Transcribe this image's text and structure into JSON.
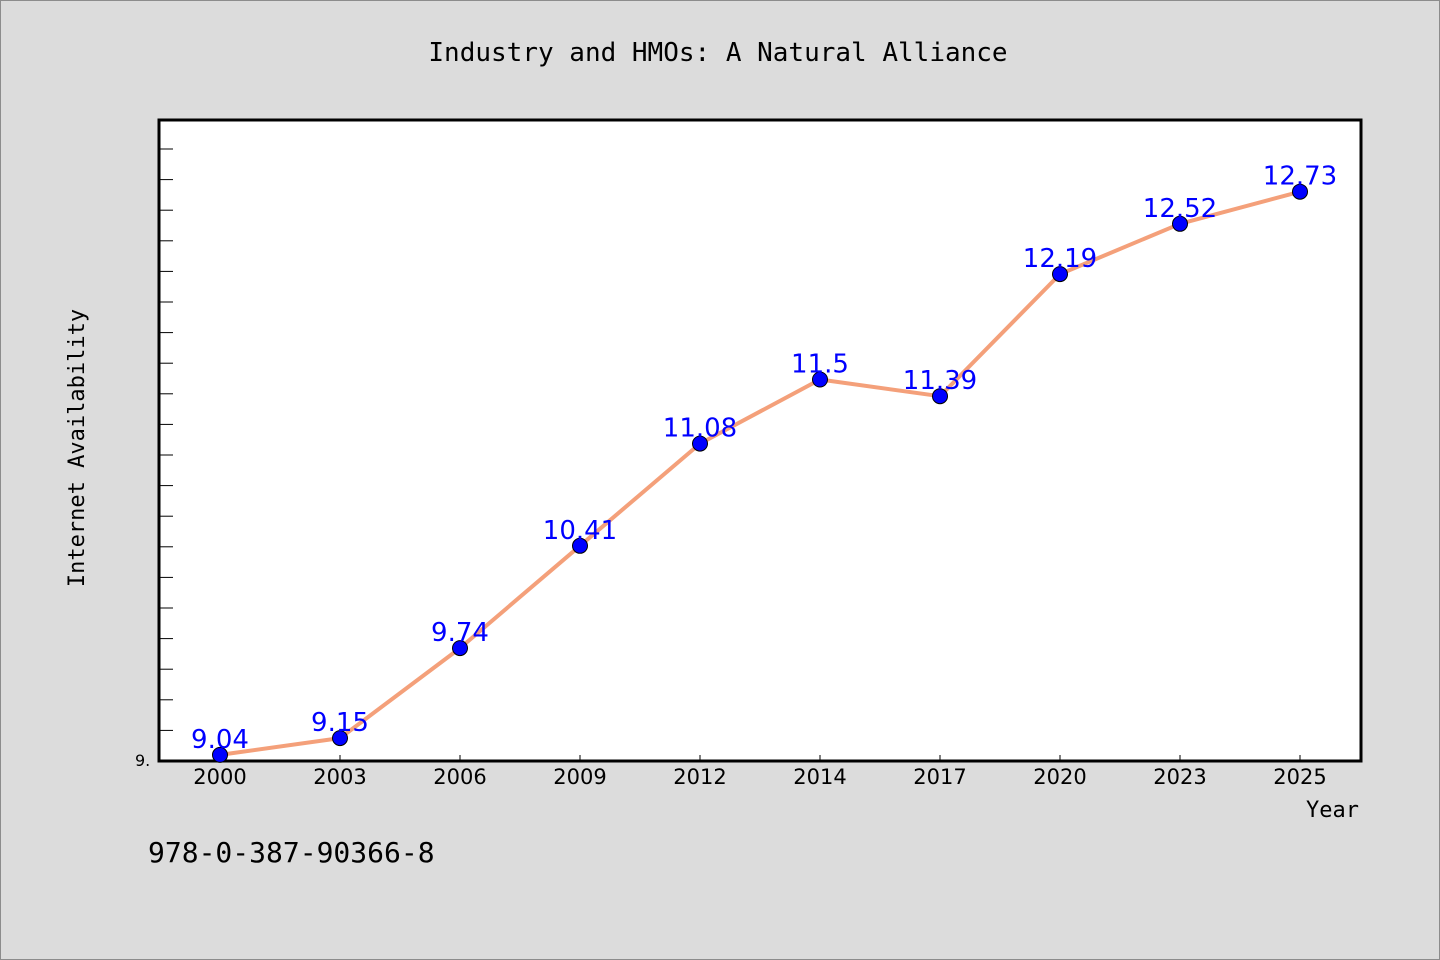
{
  "chart_data": {
    "type": "line",
    "title": "Industry and HMOs: A Natural Alliance",
    "xlabel": "Year",
    "ylabel": "Internet Availability",
    "categories": [
      "2000",
      "2003",
      "2006",
      "2009",
      "2012",
      "2014",
      "2017",
      "2020",
      "2023",
      "2025"
    ],
    "series": [
      {
        "values": [
          9.04,
          9.15,
          9.74,
          10.41,
          11.08,
          11.5,
          11.39,
          12.19,
          12.52,
          12.73
        ]
      }
    ],
    "ylim": [
      9.0,
      13.2
    ],
    "y_min_tick_label": "9.",
    "grid": false,
    "line_color": "#f4a07a",
    "marker_color": "#0000ff",
    "label_color": "#0000ff"
  },
  "footer_code": "978-0-387-90366-8"
}
